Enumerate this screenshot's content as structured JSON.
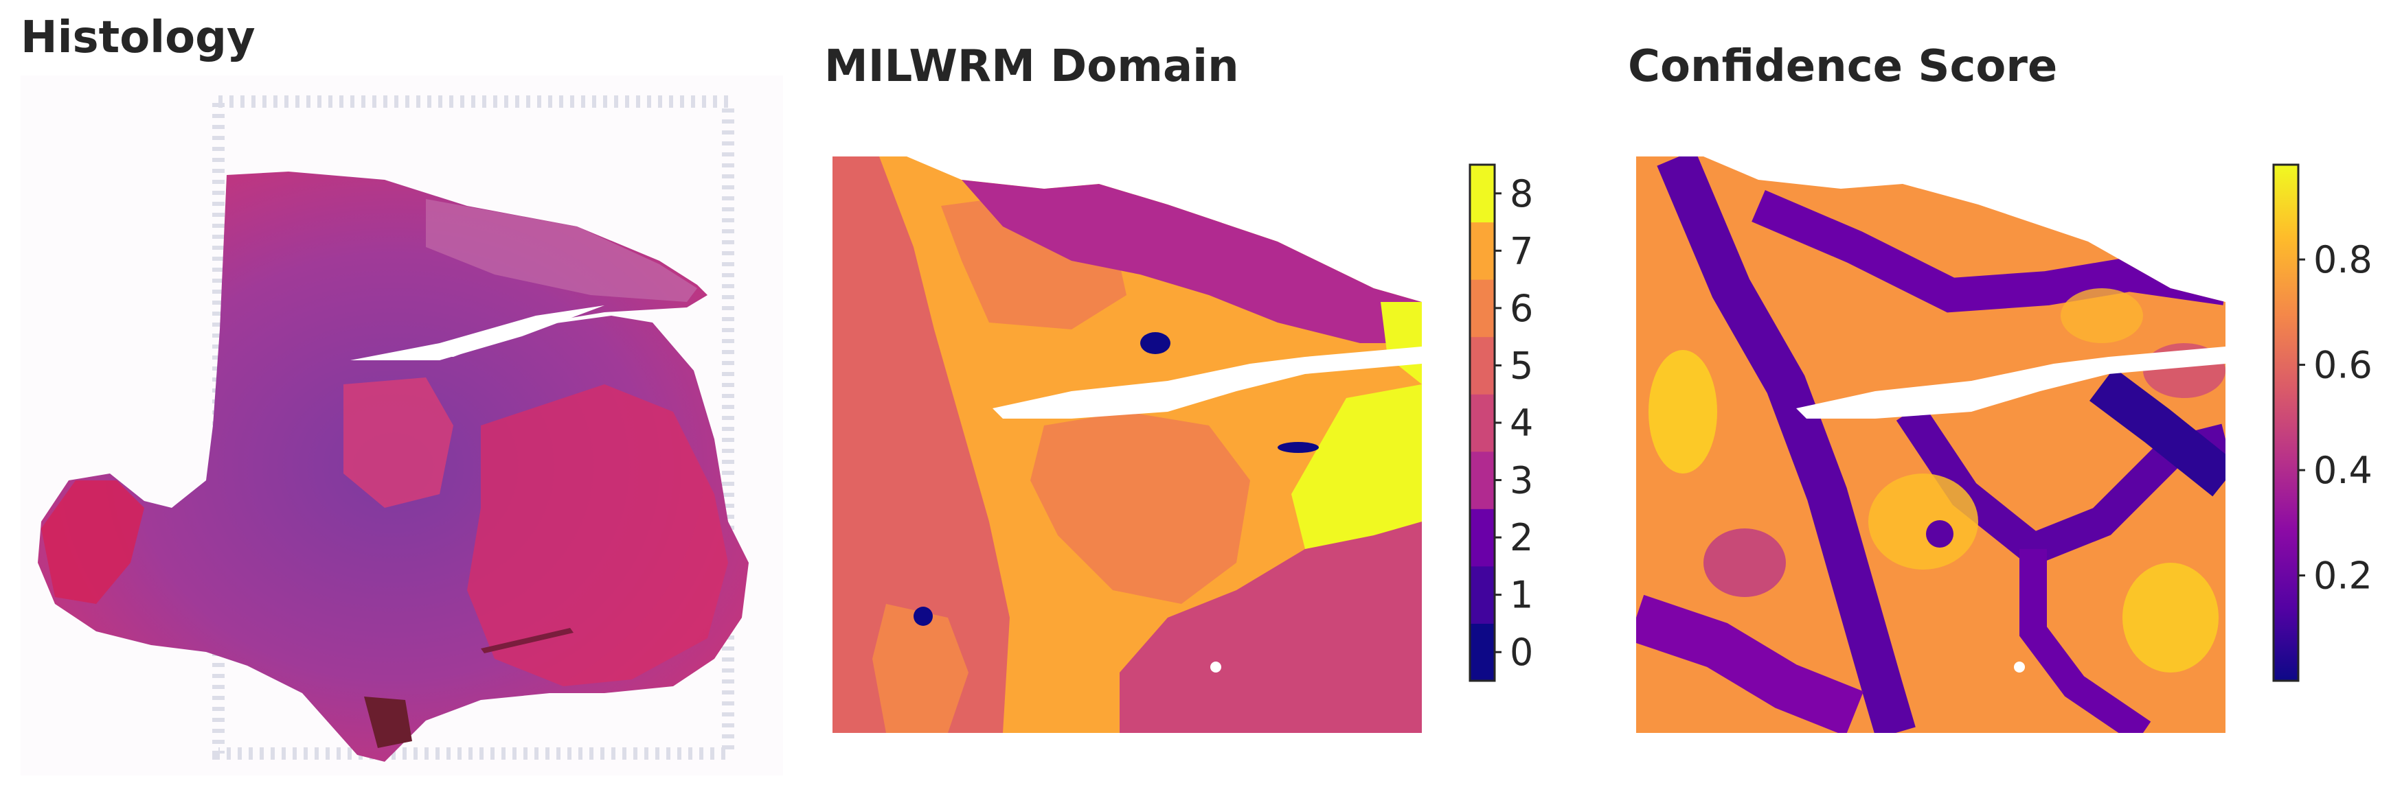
{
  "panels": {
    "histology": {
      "title": "Histology"
    },
    "domain": {
      "title": "MILWRM Domain"
    },
    "confidence": {
      "title": "Confidence Score"
    }
  },
  "domain_colorbar": {
    "ticks": [
      "0",
      "1",
      "2",
      "3",
      "4",
      "5",
      "6",
      "7",
      "8"
    ],
    "colors": [
      "#0d0887",
      "#41049d",
      "#6a00a8",
      "#b12a90",
      "#cc4778",
      "#e16462",
      "#f2844b",
      "#fca636",
      "#f0f921"
    ]
  },
  "confidence_colorbar": {
    "ticks": [
      "0.2",
      "0.4",
      "0.6",
      "0.8"
    ],
    "range": [
      0.0,
      0.98
    ],
    "colormap": "plasma"
  },
  "colors": {
    "tissue_purple": "#8a3d9e",
    "tissue_pink": "#d6336c",
    "background": "#ffffff"
  }
}
